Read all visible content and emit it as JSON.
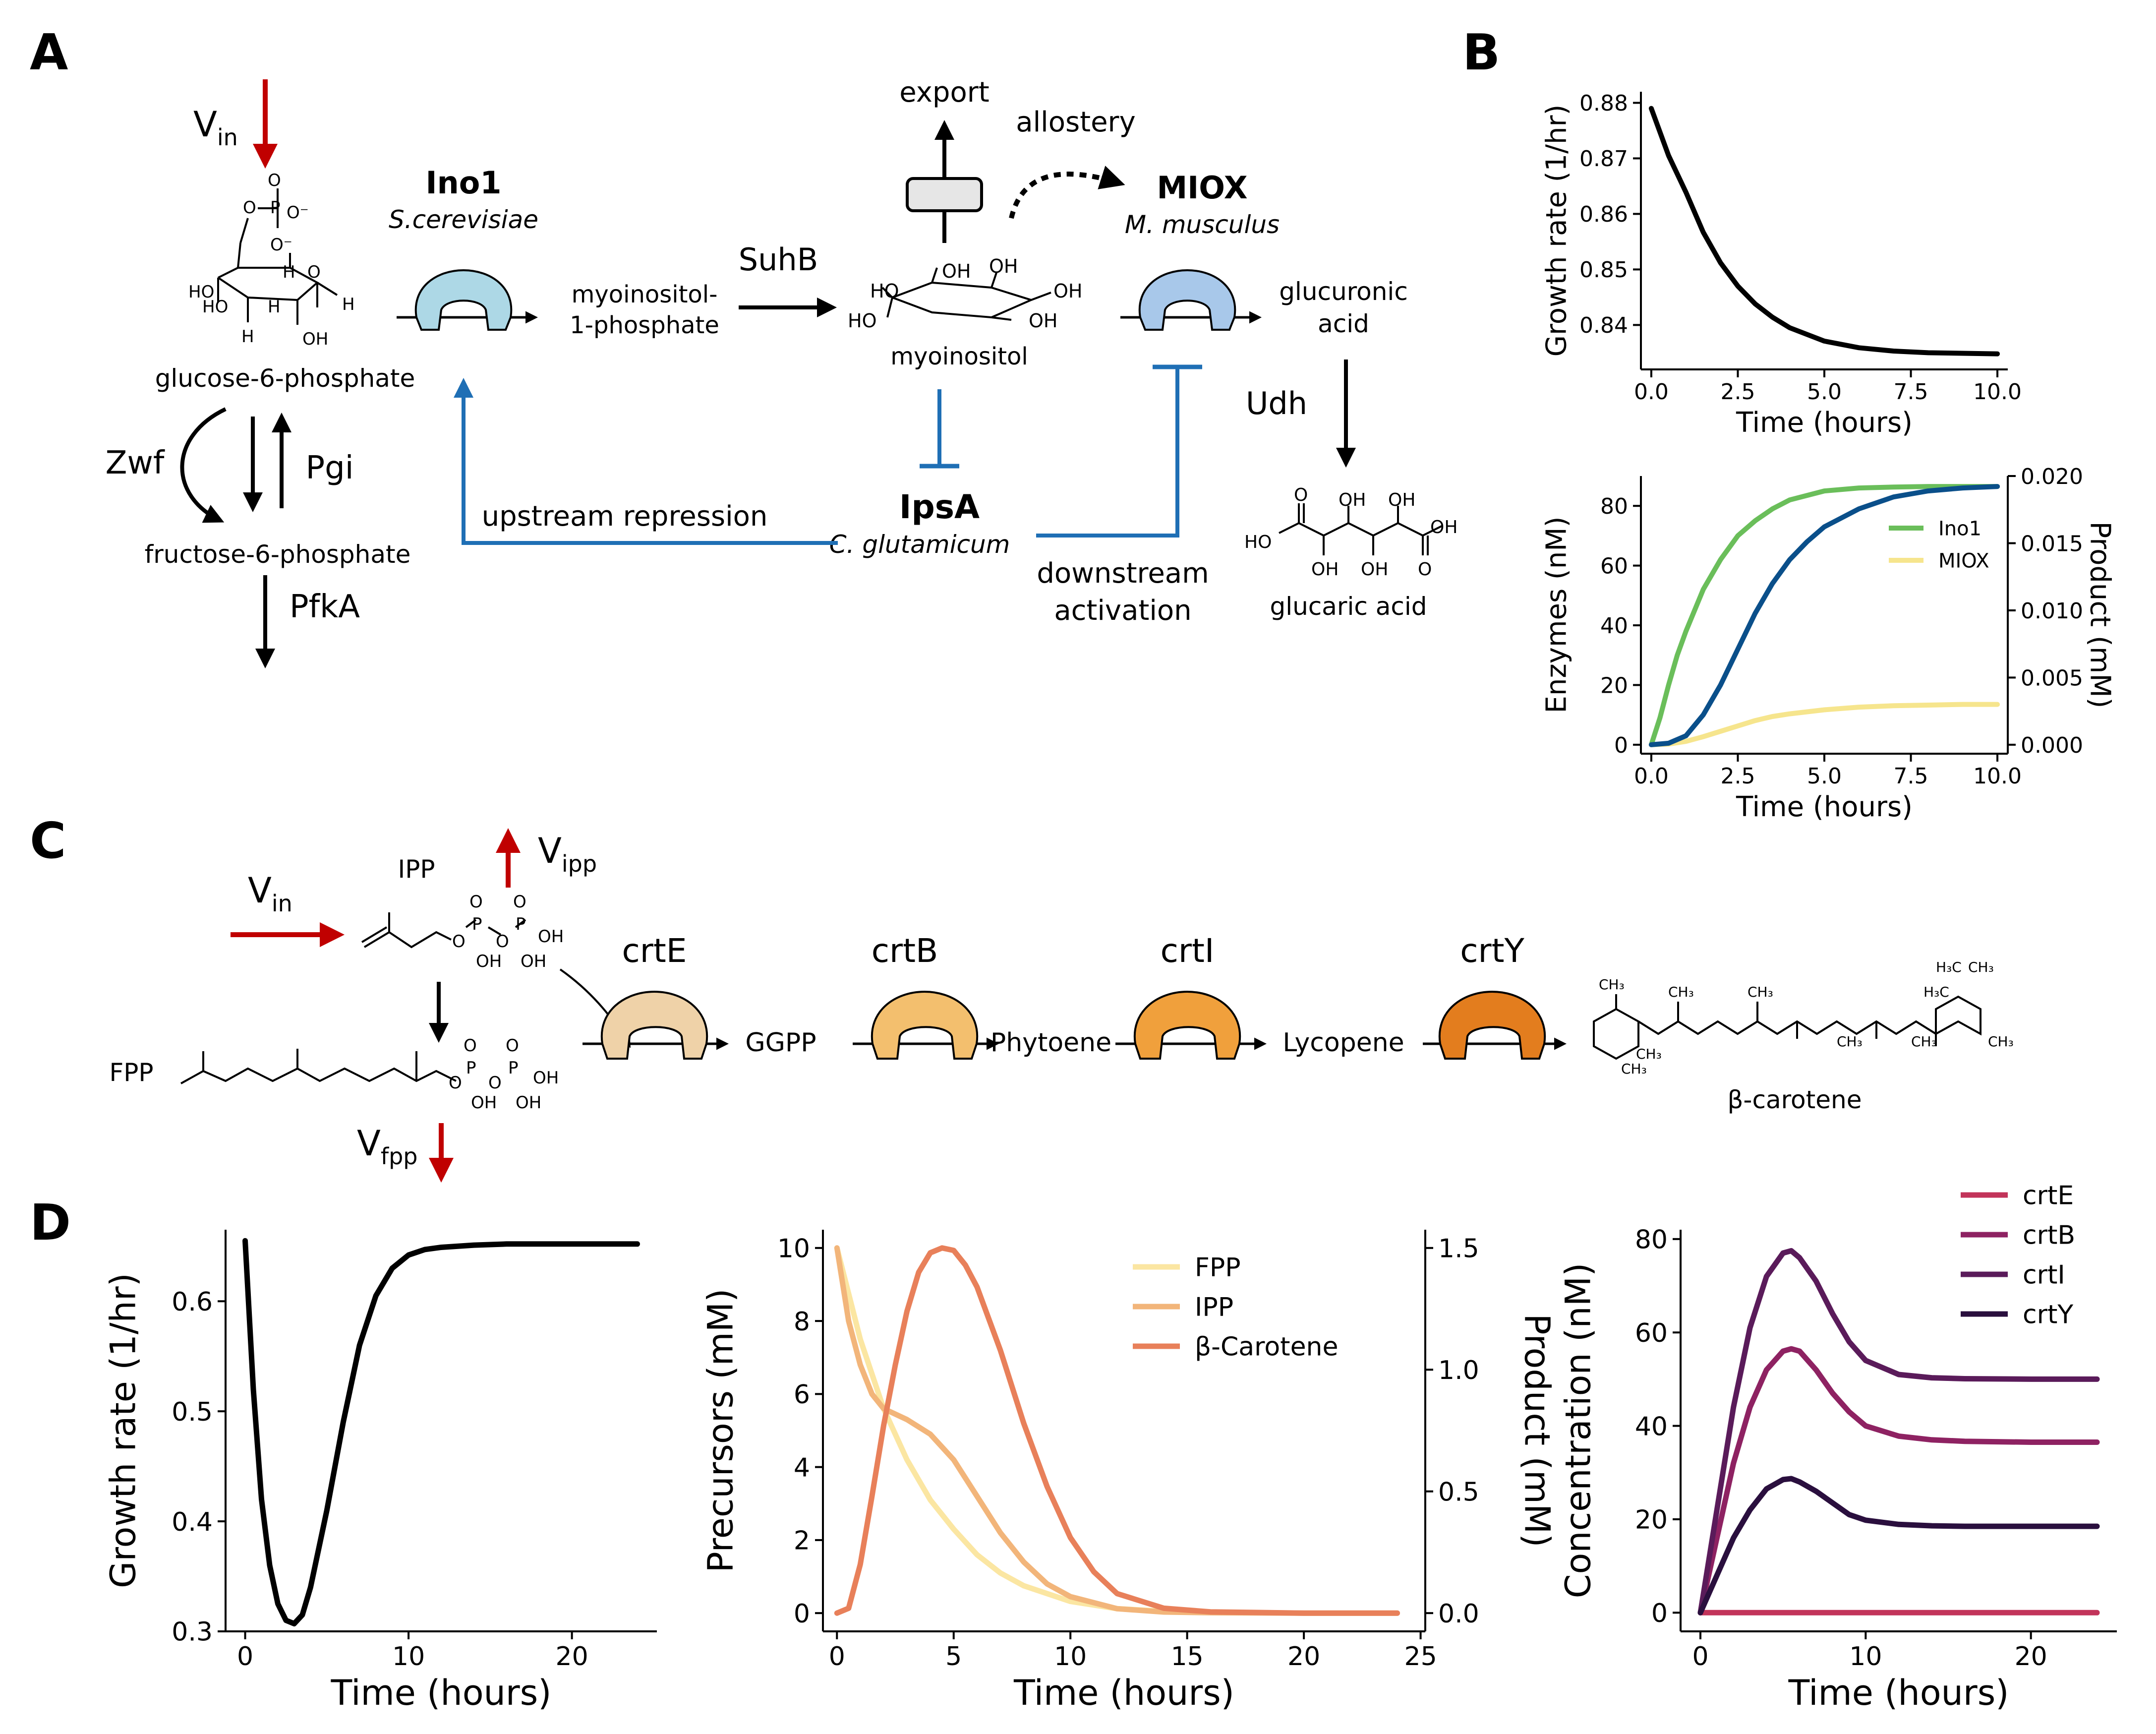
{
  "panels": {
    "a": "A",
    "b": "B",
    "c": "C",
    "d": "D"
  },
  "colors": {
    "red": "#c00000",
    "blue": "#1f6fb5",
    "ino1": "#6abe5a",
    "miox": "#f6e58d",
    "ipsA": "#0a4f8a",
    "fpp": "#fbe6a2",
    "ipp": "#f2b57a",
    "car": "#e8805a",
    "crtE": "#c2345a",
    "crtB": "#8e2262",
    "crtI": "#5a1b5a",
    "crtY": "#2a0f3e"
  },
  "panelA": {
    "vin_main": "V",
    "vin_sub": "in",
    "ino1": "Ino1",
    "ino1_org": "S.cerevisiae",
    "g6p": "glucose-6-phosphate",
    "zwf": "Zwf",
    "pgi": "Pgi",
    "f6p": "fructose-6-phosphate",
    "pfka": "PfkA",
    "mi1p_1": "myoinositol-",
    "mi1p_2": "1-phosphate",
    "suhb": "SuhB",
    "export": "export",
    "allostery": "allostery",
    "myo": "myoinositol",
    "miox": "MIOX",
    "miox_org": "M. musculus",
    "gluc_1": "glucuronic",
    "gluc_2": "acid",
    "udh": "Udh",
    "glucaric": "glucaric acid",
    "ipsa": "IpsA",
    "ipsa_org": "C. glutamicum",
    "upstream": "upstream repression",
    "down_1": "downstream",
    "down_2": "activation",
    "chem": {
      "o": "O",
      "p": "P",
      "ho": "HO",
      "oh": "OH",
      "h": "H",
      "om": "O⁻"
    }
  },
  "panelC": {
    "vin_main": "V",
    "vin_sub": "in",
    "ipp": "IPP",
    "vipp_main": "V",
    "vipp_sub": "ipp",
    "fpp": "FPP",
    "vfpp_main": "V",
    "vfpp_sub": "fpp",
    "enzymes": [
      "crtE",
      "crtB",
      "crtI",
      "crtY"
    ],
    "ggpp": "GGPP",
    "phytoene": "Phytoene",
    "lycopene": "Lycopene",
    "carotene": "β-carotene",
    "chem": {
      "oh": "OH",
      "o": "O",
      "p": "P",
      "ch3": "CH₃",
      "h3c": "H₃C"
    }
  },
  "chart_data": [
    {
      "id": "B-top",
      "type": "line",
      "xlabel": "Time (hours)",
      "ylabel": "Growth rate (1/hr)",
      "xlim": [
        -0.3,
        10.3
      ],
      "ylim": [
        0.832,
        0.882
      ],
      "xticks": [
        0,
        2.5,
        5,
        7.5,
        10
      ],
      "xtick_labels": [
        "0.0",
        "2.5",
        "5.0",
        "7.5",
        "10.0"
      ],
      "yticks": [
        0.84,
        0.85,
        0.86,
        0.87,
        0.88
      ],
      "ytick_labels": [
        "0.84",
        "0.85",
        "0.86",
        "0.87",
        "0.88"
      ],
      "series": [
        {
          "color": "#000000",
          "x": [
            0,
            0.5,
            1,
            1.5,
            2,
            2.5,
            3,
            3.5,
            4,
            5,
            6,
            7,
            8,
            9,
            10
          ],
          "y": [
            0.879,
            0.8705,
            0.8639,
            0.8567,
            0.8512,
            0.847,
            0.8438,
            0.8414,
            0.8395,
            0.8371,
            0.8359,
            0.8353,
            0.835,
            0.8349,
            0.8348
          ]
        }
      ]
    },
    {
      "id": "B-bottom",
      "type": "line",
      "xlabel": "Time (hours)",
      "ylabel": "Enzymes (nM)",
      "y2label": "Product (mM)",
      "xlim": [
        -0.3,
        10.3
      ],
      "ylim": [
        -3,
        90
      ],
      "y2lim": [
        -0.000667,
        0.02
      ],
      "xticks": [
        0,
        2.5,
        5,
        7.5,
        10
      ],
      "xtick_labels": [
        "0.0",
        "2.5",
        "5.0",
        "7.5",
        "10.0"
      ],
      "yticks": [
        0,
        20,
        40,
        60,
        80
      ],
      "ytick_labels": [
        "0",
        "20",
        "40",
        "60",
        "80"
      ],
      "y2ticks": [
        0,
        0.005,
        0.01,
        0.015,
        0.02
      ],
      "y2tick_labels": [
        "0.000",
        "0.005",
        "0.010",
        "0.015",
        "0.020"
      ],
      "legend": "upper right",
      "series": [
        {
          "name": "Ino1",
          "color": "#6abe5a",
          "axis": "left",
          "x": [
            0,
            0.25,
            0.5,
            0.75,
            1,
            1.5,
            2,
            2.5,
            3,
            3.5,
            4,
            5,
            6,
            7,
            8,
            9,
            10
          ],
          "y": [
            0,
            9,
            20,
            30,
            38,
            52,
            62,
            70,
            75,
            79,
            82,
            85,
            86,
            86.3,
            86.5,
            86.5,
            86.5
          ]
        },
        {
          "name": "MIOX",
          "color": "#f6e58d",
          "axis": "right",
          "x": [
            0,
            0.5,
            1,
            1.5,
            2,
            2.5,
            3,
            3.5,
            4,
            5,
            6,
            7,
            8,
            9,
            10
          ],
          "y": [
            0,
            5e-05,
            0.00025,
            0.0006,
            0.001,
            0.0014,
            0.0018,
            0.0021,
            0.0023,
            0.0026,
            0.0028,
            0.0029,
            0.00295,
            0.003,
            0.003
          ]
        },
        {
          "name": "",
          "color": "#0a4f8a",
          "axis": "left",
          "x": [
            0,
            0.5,
            1,
            1.5,
            2,
            2.5,
            3,
            3.5,
            4,
            4.5,
            5,
            6,
            7,
            8,
            9,
            10
          ],
          "y": [
            0,
            0.5,
            3,
            10,
            20,
            32,
            44,
            54,
            62,
            68,
            73,
            79,
            83,
            85,
            86,
            86.5
          ]
        }
      ]
    },
    {
      "id": "D-left",
      "type": "line",
      "xlabel": "Time (hours)",
      "ylabel": "Growth rate (1/hr)",
      "xlim": [
        -1.2,
        25.2
      ],
      "ylim": [
        0.3,
        0.665
      ],
      "xticks": [
        0,
        10,
        20
      ],
      "xtick_labels": [
        "0",
        "10",
        "20"
      ],
      "yticks": [
        0.3,
        0.4,
        0.5,
        0.6
      ],
      "ytick_labels": [
        "0.3",
        "0.4",
        "0.5",
        "0.6"
      ],
      "series": [
        {
          "color": "#000000",
          "x": [
            0,
            0.5,
            1,
            1.5,
            2,
            2.5,
            3,
            3.5,
            4,
            5,
            6,
            7,
            8,
            9,
            10,
            11,
            12,
            14,
            16,
            20,
            24
          ],
          "y": [
            0.655,
            0.52,
            0.42,
            0.36,
            0.325,
            0.31,
            0.307,
            0.315,
            0.34,
            0.41,
            0.49,
            0.56,
            0.605,
            0.63,
            0.642,
            0.647,
            0.649,
            0.651,
            0.652,
            0.652,
            0.652
          ]
        }
      ]
    },
    {
      "id": "D-mid",
      "type": "line",
      "xlabel": "Time (hours)",
      "ylabel": "Precursors (mM)",
      "y2label": "Product (mM)",
      "xlim": [
        -0.6,
        25.2
      ],
      "ylim": [
        -0.5,
        10.5
      ],
      "y2lim": [
        -0.075,
        1.575
      ],
      "xticks": [
        0,
        5,
        10,
        15,
        20,
        25
      ],
      "xtick_labels": [
        "0",
        "5",
        "10",
        "15",
        "20",
        "25"
      ],
      "yticks": [
        0,
        2,
        4,
        6,
        8,
        10
      ],
      "ytick_labels": [
        "0",
        "2",
        "4",
        "6",
        "8",
        "10"
      ],
      "y2ticks": [
        0,
        0.5,
        1,
        1.5
      ],
      "y2tick_labels": [
        "0.0",
        "0.5",
        "1.0",
        "1.5"
      ],
      "legend": "upper right",
      "series": [
        {
          "name": "FPP",
          "color": "#fbe6a2",
          "axis": "left",
          "x": [
            0,
            1,
            2,
            3,
            4,
            5,
            6,
            7,
            8,
            10,
            12,
            14,
            16,
            20,
            24
          ],
          "y": [
            10,
            7.5,
            5.6,
            4.2,
            3.1,
            2.3,
            1.6,
            1.1,
            0.75,
            0.32,
            0.12,
            0.05,
            0.02,
            0,
            0
          ]
        },
        {
          "name": "IPP",
          "color": "#f2b57a",
          "axis": "left",
          "x": [
            0,
            0.5,
            1,
            1.5,
            2,
            3,
            4,
            5,
            6,
            7,
            8,
            9,
            10,
            12,
            14,
            16,
            20,
            24
          ],
          "y": [
            10,
            8,
            6.8,
            6,
            5.6,
            5.3,
            4.9,
            4.2,
            3.2,
            2.2,
            1.4,
            0.8,
            0.45,
            0.12,
            0.03,
            0.01,
            0,
            0
          ]
        },
        {
          "name": "β-Carotene",
          "color": "#e8805a",
          "axis": "right",
          "x": [
            0,
            0.5,
            1,
            1.5,
            2,
            2.5,
            3,
            3.5,
            4,
            4.5,
            5,
            5.5,
            6,
            7,
            8,
            9,
            10,
            11,
            12,
            14,
            16,
            20,
            24
          ],
          "y": [
            0,
            0.02,
            0.2,
            0.48,
            0.77,
            1.02,
            1.24,
            1.4,
            1.48,
            1.5,
            1.49,
            1.43,
            1.34,
            1.08,
            0.78,
            0.52,
            0.31,
            0.17,
            0.08,
            0.02,
            0.005,
            0,
            0
          ]
        }
      ]
    },
    {
      "id": "D-right",
      "type": "line",
      "xlabel": "Time (hours)",
      "ylabel": "Concentration (nM)",
      "xlim": [
        -1.2,
        25.2
      ],
      "ylim": [
        -4,
        82
      ],
      "xticks": [
        0,
        10,
        20
      ],
      "xtick_labels": [
        "0",
        "10",
        "20"
      ],
      "yticks": [
        0,
        20,
        40,
        60,
        80
      ],
      "ytick_labels": [
        "0",
        "20",
        "40",
        "60",
        "80"
      ],
      "legend": "upper right",
      "series": [
        {
          "name": "crtE",
          "color": "#c2345a",
          "x": [
            0,
            24
          ],
          "y": [
            0,
            0
          ]
        },
        {
          "name": "crtB",
          "color": "#8e2262",
          "x": [
            0,
            1,
            2,
            3,
            4,
            5,
            5.5,
            6,
            7,
            8,
            9,
            10,
            12,
            14,
            16,
            20,
            24
          ],
          "y": [
            0,
            16,
            32,
            44,
            52,
            56,
            56.5,
            56,
            52,
            47,
            43,
            40,
            37.8,
            37,
            36.7,
            36.5,
            36.5
          ]
        },
        {
          "name": "crtI",
          "color": "#5a1b5a",
          "x": [
            0,
            1,
            2,
            3,
            4,
            5,
            5.5,
            6,
            7,
            8,
            9,
            10,
            12,
            14,
            16,
            20,
            24
          ],
          "y": [
            0,
            22,
            44,
            61,
            72,
            77,
            77.5,
            76,
            71,
            64,
            58,
            54,
            51,
            50.3,
            50.1,
            50,
            50
          ]
        },
        {
          "name": "crtY",
          "color": "#2a0f3e",
          "x": [
            0,
            1,
            2,
            3,
            4,
            5,
            5.5,
            6,
            7,
            8,
            9,
            10,
            12,
            14,
            16,
            20,
            24
          ],
          "y": [
            0,
            8,
            16,
            22,
            26.5,
            28.5,
            28.7,
            28,
            26,
            23.5,
            21,
            19.8,
            18.9,
            18.6,
            18.5,
            18.5,
            18.5
          ]
        }
      ]
    }
  ]
}
